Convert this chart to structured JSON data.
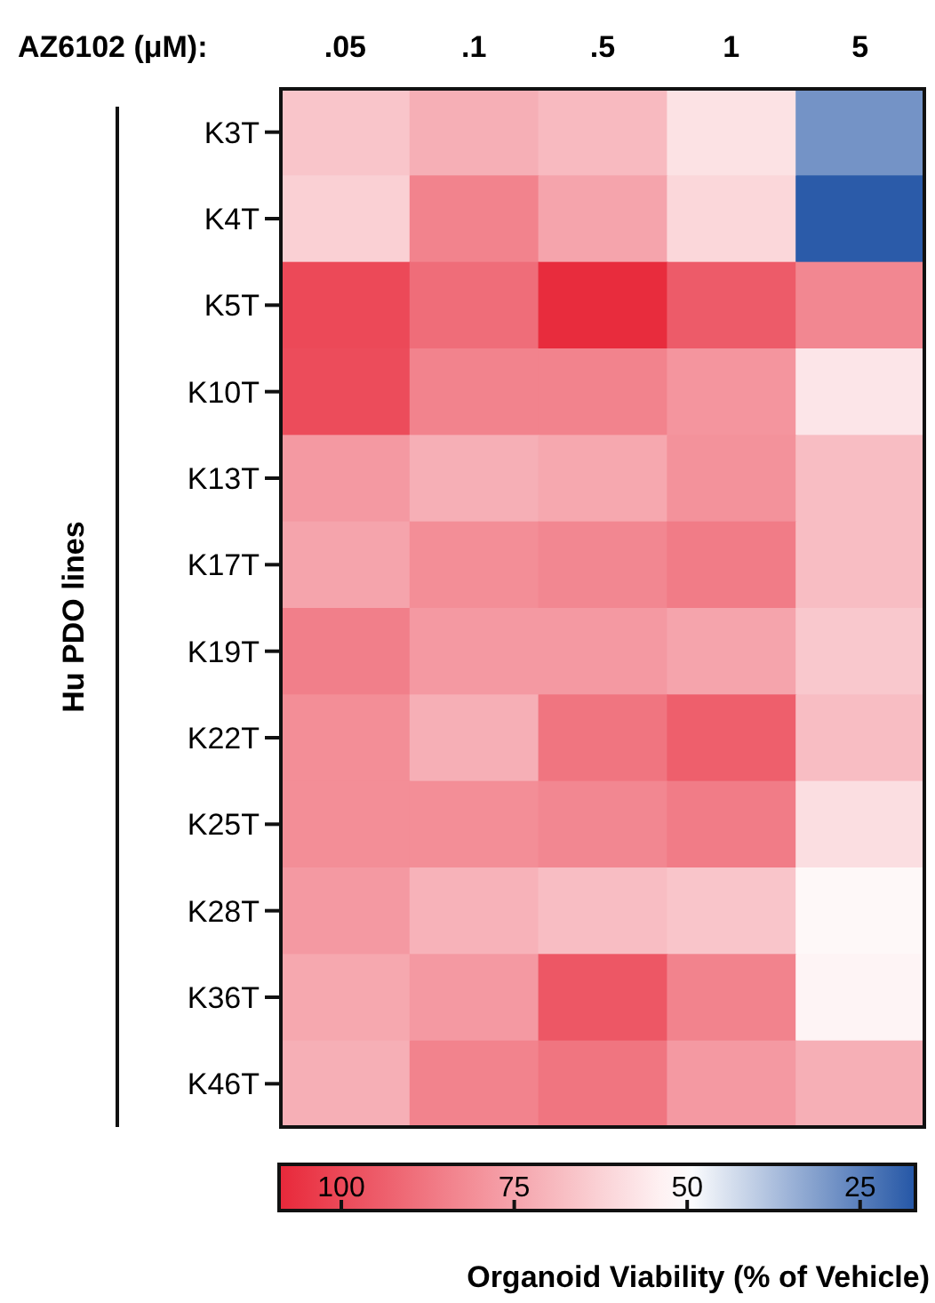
{
  "chart_data": {
    "type": "heatmap",
    "xlabel": "AZ6102 (μM):",
    "ylabel": "Hu PDO lines",
    "clabel": "Organoid Viability (% of Vehicle)",
    "categories": [
      ".05",
      ".1",
      ".5",
      "1",
      "5"
    ],
    "y_categories": [
      "K3T",
      "K4T",
      "K5T",
      "K10T",
      "K13T",
      "K17T",
      "K19T",
      "K22T",
      "K25T",
      "K28T",
      "K36T",
      "K46T"
    ],
    "cells": [
      [
        66,
        72,
        69,
        58,
        29
      ],
      [
        63,
        84,
        75,
        61,
        18
      ],
      [
        100,
        90,
        108,
        95,
        83
      ],
      [
        99,
        84,
        84,
        79,
        57
      ],
      [
        78,
        72,
        74,
        80,
        68
      ],
      [
        75,
        81,
        83,
        86,
        68
      ],
      [
        85,
        78,
        78,
        75,
        65
      ],
      [
        81,
        72,
        88,
        94,
        68
      ],
      [
        81,
        81,
        83,
        86,
        59
      ],
      [
        78,
        71,
        68,
        66,
        52
      ],
      [
        74,
        78,
        96,
        84,
        53
      ],
      [
        72,
        84,
        88,
        78,
        72
      ]
    ],
    "clim": [
      109,
      17
    ],
    "cticks": [
      100,
      75,
      50,
      25
    ]
  }
}
